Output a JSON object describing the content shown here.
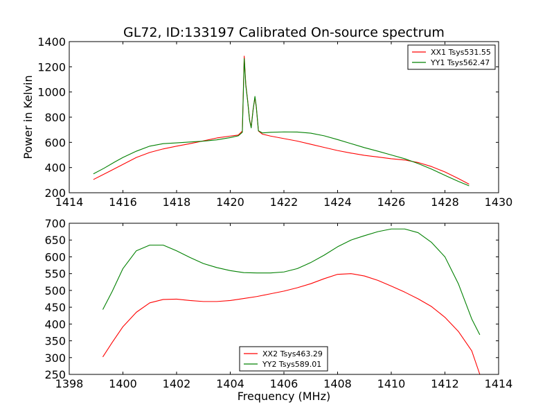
{
  "chart_data": [
    {
      "type": "line",
      "title": "GL72, ID:133197 Calibrated On-source spectrum",
      "xlabel": "",
      "ylabel": "Power in Kelvin",
      "xlim": [
        1414,
        1430
      ],
      "ylim": [
        200,
        1400
      ],
      "xticks": [
        "1414",
        "1416",
        "1418",
        "1420",
        "1422",
        "1424",
        "1426",
        "1428",
        "1430"
      ],
      "yticks": [
        "200",
        "400",
        "600",
        "800",
        "1000",
        "1200",
        "1400"
      ],
      "legend_position": "top-right",
      "series": [
        {
          "name": "XX1 Tsys531.55",
          "color": "#ff0000",
          "points": [
            [
              1414.9,
              305
            ],
            [
              1415.5,
              370
            ],
            [
              1416.0,
              425
            ],
            [
              1416.5,
              480
            ],
            [
              1417.0,
              520
            ],
            [
              1417.5,
              548
            ],
            [
              1418.0,
              570
            ],
            [
              1418.5,
              590
            ],
            [
              1419.0,
              612
            ],
            [
              1419.5,
              635
            ],
            [
              1420.0,
              650
            ],
            [
              1420.3,
              658
            ],
            [
              1420.45,
              690
            ],
            [
              1420.52,
              1285
            ],
            [
              1420.58,
              1060
            ],
            [
              1420.65,
              930
            ],
            [
              1420.72,
              780
            ],
            [
              1420.78,
              720
            ],
            [
              1420.85,
              860
            ],
            [
              1420.92,
              955
            ],
            [
              1420.97,
              880
            ],
            [
              1421.05,
              690
            ],
            [
              1421.2,
              665
            ],
            [
              1421.5,
              650
            ],
            [
              1422.0,
              630
            ],
            [
              1422.5,
              610
            ],
            [
              1423.0,
              585
            ],
            [
              1423.5,
              560
            ],
            [
              1424.0,
              535
            ],
            [
              1424.5,
              515
            ],
            [
              1425.0,
              497
            ],
            [
              1425.5,
              484
            ],
            [
              1426.0,
              470
            ],
            [
              1426.5,
              460
            ],
            [
              1427.0,
              440
            ],
            [
              1427.5,
              408
            ],
            [
              1428.0,
              365
            ],
            [
              1428.5,
              313
            ],
            [
              1428.9,
              268
            ]
          ]
        },
        {
          "name": "YY1 Tsys562.47",
          "color": "#008000",
          "points": [
            [
              1414.9,
              350
            ],
            [
              1415.3,
              395
            ],
            [
              1415.7,
              445
            ],
            [
              1416.0,
              480
            ],
            [
              1416.5,
              530
            ],
            [
              1417.0,
              570
            ],
            [
              1417.5,
              590
            ],
            [
              1418.0,
              596
            ],
            [
              1418.5,
              603
            ],
            [
              1419.0,
              610
            ],
            [
              1419.5,
              620
            ],
            [
              1420.0,
              638
            ],
            [
              1420.3,
              652
            ],
            [
              1420.45,
              680
            ],
            [
              1420.52,
              1265
            ],
            [
              1420.58,
              1050
            ],
            [
              1420.65,
              925
            ],
            [
              1420.72,
              775
            ],
            [
              1420.78,
              715
            ],
            [
              1420.85,
              855
            ],
            [
              1420.92,
              965
            ],
            [
              1420.97,
              885
            ],
            [
              1421.05,
              692
            ],
            [
              1421.2,
              675
            ],
            [
              1421.5,
              680
            ],
            [
              1422.0,
              683
            ],
            [
              1422.5,
              682
            ],
            [
              1423.0,
              673
            ],
            [
              1423.5,
              652
            ],
            [
              1424.0,
              622
            ],
            [
              1424.5,
              590
            ],
            [
              1425.0,
              558
            ],
            [
              1425.5,
              530
            ],
            [
              1426.0,
              500
            ],
            [
              1426.5,
              470
            ],
            [
              1427.0,
              432
            ],
            [
              1427.5,
              388
            ],
            [
              1428.0,
              338
            ],
            [
              1428.5,
              290
            ],
            [
              1428.9,
              255
            ]
          ]
        }
      ]
    },
    {
      "type": "line",
      "title": "",
      "xlabel": "Frequency (MHz)",
      "ylabel": "",
      "xlim": [
        1398,
        1414
      ],
      "ylim": [
        250,
        700
      ],
      "xticks": [
        "1398",
        "1400",
        "1402",
        "1404",
        "1406",
        "1408",
        "1410",
        "1412",
        "1414"
      ],
      "yticks": [
        "250",
        "300",
        "350",
        "400",
        "450",
        "500",
        "550",
        "600",
        "650",
        "700"
      ],
      "legend_position": "bottom-center",
      "series": [
        {
          "name": "XX2 Tsys463.29",
          "color": "#ff0000",
          "points": [
            [
              1399.25,
              302
            ],
            [
              1399.6,
              345
            ],
            [
              1400.0,
              392
            ],
            [
              1400.5,
              435
            ],
            [
              1401.0,
              463
            ],
            [
              1401.5,
              473
            ],
            [
              1402.0,
              474
            ],
            [
              1402.5,
              470
            ],
            [
              1403.0,
              467
            ],
            [
              1403.5,
              467
            ],
            [
              1404.0,
              470
            ],
            [
              1404.5,
              476
            ],
            [
              1405.0,
              482
            ],
            [
              1405.5,
              490
            ],
            [
              1406.0,
              498
            ],
            [
              1406.5,
              508
            ],
            [
              1407.0,
              520
            ],
            [
              1407.5,
              535
            ],
            [
              1408.0,
              548
            ],
            [
              1408.5,
              550
            ],
            [
              1409.0,
              543
            ],
            [
              1409.5,
              530
            ],
            [
              1410.0,
              513
            ],
            [
              1410.5,
              495
            ],
            [
              1411.0,
              475
            ],
            [
              1411.5,
              452
            ],
            [
              1412.0,
              420
            ],
            [
              1412.5,
              378
            ],
            [
              1413.0,
              320
            ],
            [
              1413.3,
              250
            ]
          ]
        },
        {
          "name": "YY2 Tsys589.01",
          "color": "#008000",
          "points": [
            [
              1399.25,
              443
            ],
            [
              1399.6,
              497
            ],
            [
              1400.0,
              565
            ],
            [
              1400.5,
              618
            ],
            [
              1401.0,
              635
            ],
            [
              1401.5,
              635
            ],
            [
              1402.0,
              618
            ],
            [
              1402.5,
              598
            ],
            [
              1403.0,
              580
            ],
            [
              1403.5,
              568
            ],
            [
              1404.0,
              559
            ],
            [
              1404.5,
              553
            ],
            [
              1405.0,
              552
            ],
            [
              1405.5,
              552
            ],
            [
              1406.0,
              555
            ],
            [
              1406.5,
              565
            ],
            [
              1407.0,
              583
            ],
            [
              1407.5,
              605
            ],
            [
              1408.0,
              630
            ],
            [
              1408.5,
              650
            ],
            [
              1409.0,
              663
            ],
            [
              1409.5,
              675
            ],
            [
              1410.0,
              683
            ],
            [
              1410.5,
              683
            ],
            [
              1411.0,
              672
            ],
            [
              1411.5,
              643
            ],
            [
              1412.0,
              600
            ],
            [
              1412.5,
              520
            ],
            [
              1413.0,
              415
            ],
            [
              1413.3,
              368
            ]
          ]
        }
      ]
    }
  ]
}
